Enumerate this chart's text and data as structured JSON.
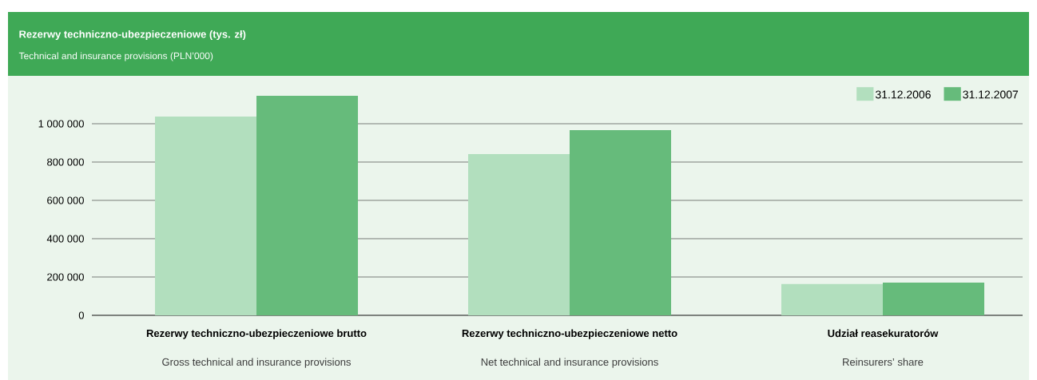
{
  "chart_data": {
    "type": "bar",
    "title": "Rezerwy techniczno-ubezpieczeniowe (tys. zł)",
    "subtitle": "Technical and insurance provisions (PLN’000)",
    "categories": [
      "Rezerwy techniczno-ubezpieczeniowe brutto",
      "Rezerwy techniczno-ubezpieczeniowe netto",
      "Udział reasekuratorów"
    ],
    "annotations": [
      "Gross technical and insurance provisions",
      "Net technical and insurance provisions",
      "Reinsurers’ share"
    ],
    "series": [
      {
        "name": "31.12.2006",
        "color": "#b2dfbe",
        "values": [
          1037000,
          842000,
          163000
        ]
      },
      {
        "name": "31.12.2007",
        "color": "#66bb7b",
        "values": [
          1146000,
          967000,
          171000
        ]
      }
    ],
    "ylim": [
      0,
      1200000
    ],
    "yticks": [
      0,
      {
        "value": 200000,
        "label": "200 000"
      },
      {
        "value": 400000,
        "label": "400 000"
      },
      {
        "value": 600000,
        "label": "600 000"
      },
      {
        "value": 800000,
        "label": "800 000"
      },
      {
        "value": 1000000,
        "label": "1 000 000"
      }
    ],
    "grid": "y",
    "legend": "top right"
  }
}
